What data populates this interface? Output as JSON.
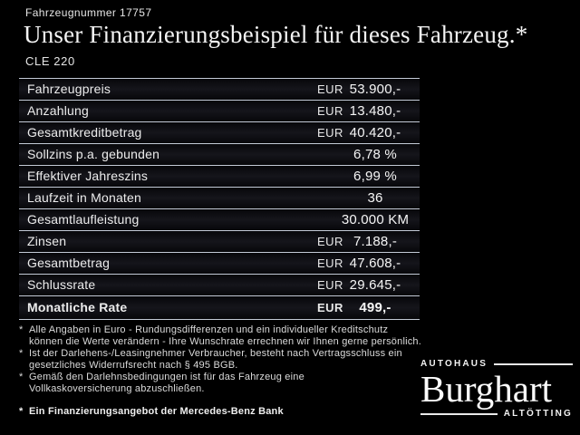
{
  "header": {
    "vehicle_number": "Fahrzeugnummer 17757",
    "title": "Unser Finanzierungsbeispiel für dieses Fahrzeug.*",
    "model": "CLE 220"
  },
  "table": {
    "rows": [
      {
        "label": "Fahrzeugpreis",
        "currency": "EUR",
        "value": "53.900,-"
      },
      {
        "label": "Anzahlung",
        "currency": "EUR",
        "value": "13.480,-"
      },
      {
        "label": "Gesamtkreditbetrag",
        "currency": "EUR",
        "value": "40.420,-"
      },
      {
        "label": "Sollzins p.a. gebunden",
        "currency": "",
        "value": "6,78 %"
      },
      {
        "label": "Effektiver Jahreszins",
        "currency": "",
        "value": "6,99 %"
      },
      {
        "label": "Laufzeit in Monaten",
        "currency": "",
        "value": "36"
      },
      {
        "label": "Gesamtlaufleistung",
        "currency": "",
        "value": "30.000 KM"
      },
      {
        "label": "Zinsen",
        "currency": "EUR",
        "value": "7.188,-"
      },
      {
        "label": "Gesamtbetrag",
        "currency": "EUR",
        "value": "47.608,-"
      },
      {
        "label": "Schlussrate",
        "currency": "EUR",
        "value": "29.645,-"
      },
      {
        "label": "Monatliche Rate",
        "currency": "EUR",
        "value": "499,-"
      }
    ]
  },
  "footnotes": {
    "marker": "*",
    "items": [
      {
        "lines": [
          "Alle Angaben in Euro - Rundungsdifferenzen und ein individueller Kreditschutz",
          "können die Werte verändern - Ihre Wunschrate errechnen wir Ihnen gerne persönlich."
        ]
      },
      {
        "lines": [
          "Ist der Darlehens-/Leasingnehmer Verbraucher, besteht nach Vertragsschluss ein",
          "gesetzliches Widerrufsrecht nach § 495 BGB."
        ]
      },
      {
        "lines": [
          "Gemäß den Darlehnsbedingungen ist für das Fahrzeug eine",
          "Vollkaskoversicherung abzuschließen."
        ]
      },
      {
        "lines": [
          "Ein Finanzierungsangebot der Mercedes-Benz Bank"
        ]
      }
    ]
  },
  "logo": {
    "prefix": "AUTOHAUS",
    "name": "Burghart",
    "suffix": "ALTÖTTING"
  },
  "colors": {
    "background": "#000000",
    "text": "#ededed",
    "separator_line": "#c3cad6"
  }
}
